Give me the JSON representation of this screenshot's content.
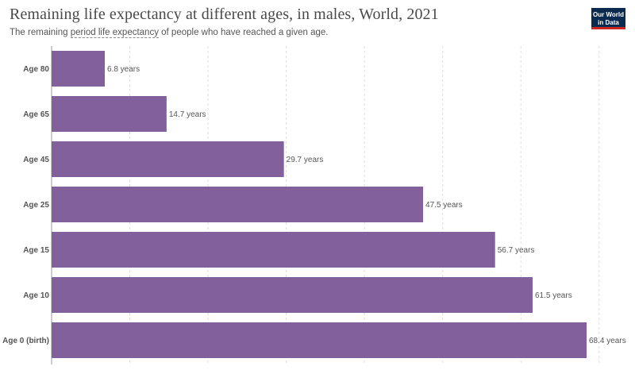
{
  "header": {
    "title": "Remaining life expectancy at different ages, in males, World, 2021",
    "subtitle_prefix": "The remaining ",
    "subtitle_link": "period life expectancy",
    "subtitle_suffix": " of people who have reached a given age.",
    "logo_line1": "Our World",
    "logo_line2": "in Data"
  },
  "colors": {
    "bar": "#81609c",
    "grid": "#dddddd",
    "axis": "#999999",
    "logo_bg": "#0b2a4f",
    "logo_accent": "#ce261e"
  },
  "chart_data": {
    "type": "bar",
    "orientation": "horizontal",
    "title": "Remaining life expectancy at different ages, in males, World, 2021",
    "unit": "years",
    "categories": [
      "Age 80",
      "Age 65",
      "Age 45",
      "Age 25",
      "Age 15",
      "Age 10",
      "Age 0 (birth)"
    ],
    "values": [
      6.8,
      14.7,
      29.7,
      47.5,
      56.7,
      61.5,
      68.4
    ],
    "value_labels": [
      "6.8 years",
      "14.7 years",
      "29.7 years",
      "47.5 years",
      "56.7 years",
      "61.5 years",
      "68.4 years"
    ],
    "xlim": [
      0,
      70
    ],
    "grid": true
  }
}
